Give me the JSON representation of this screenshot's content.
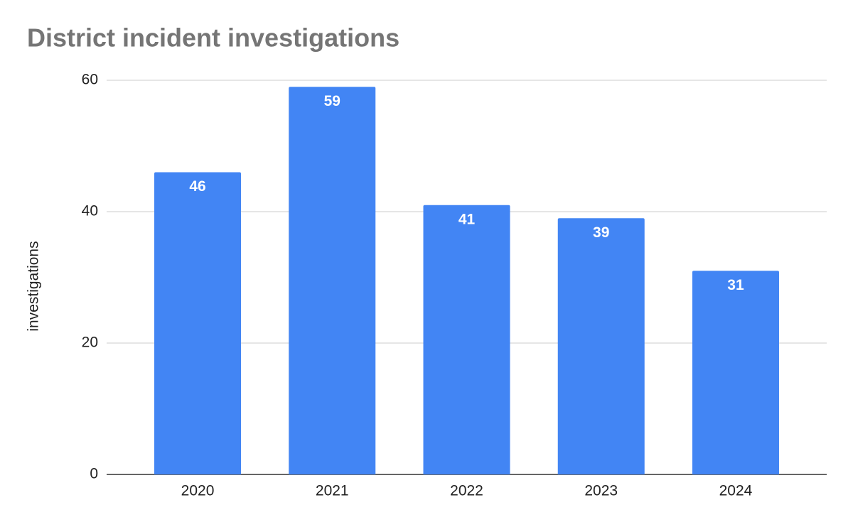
{
  "chart_data": {
    "type": "bar",
    "title": "District incident investigations",
    "y_label": "investigations",
    "categories": [
      "2020",
      "2021",
      "2022",
      "2023",
      "2024"
    ],
    "values": [
      46,
      59,
      41,
      39,
      31
    ],
    "color": "#4285f4",
    "ylim": [
      0,
      60
    ],
    "yticks": [
      0,
      20,
      40,
      60
    ],
    "grid": true
  }
}
